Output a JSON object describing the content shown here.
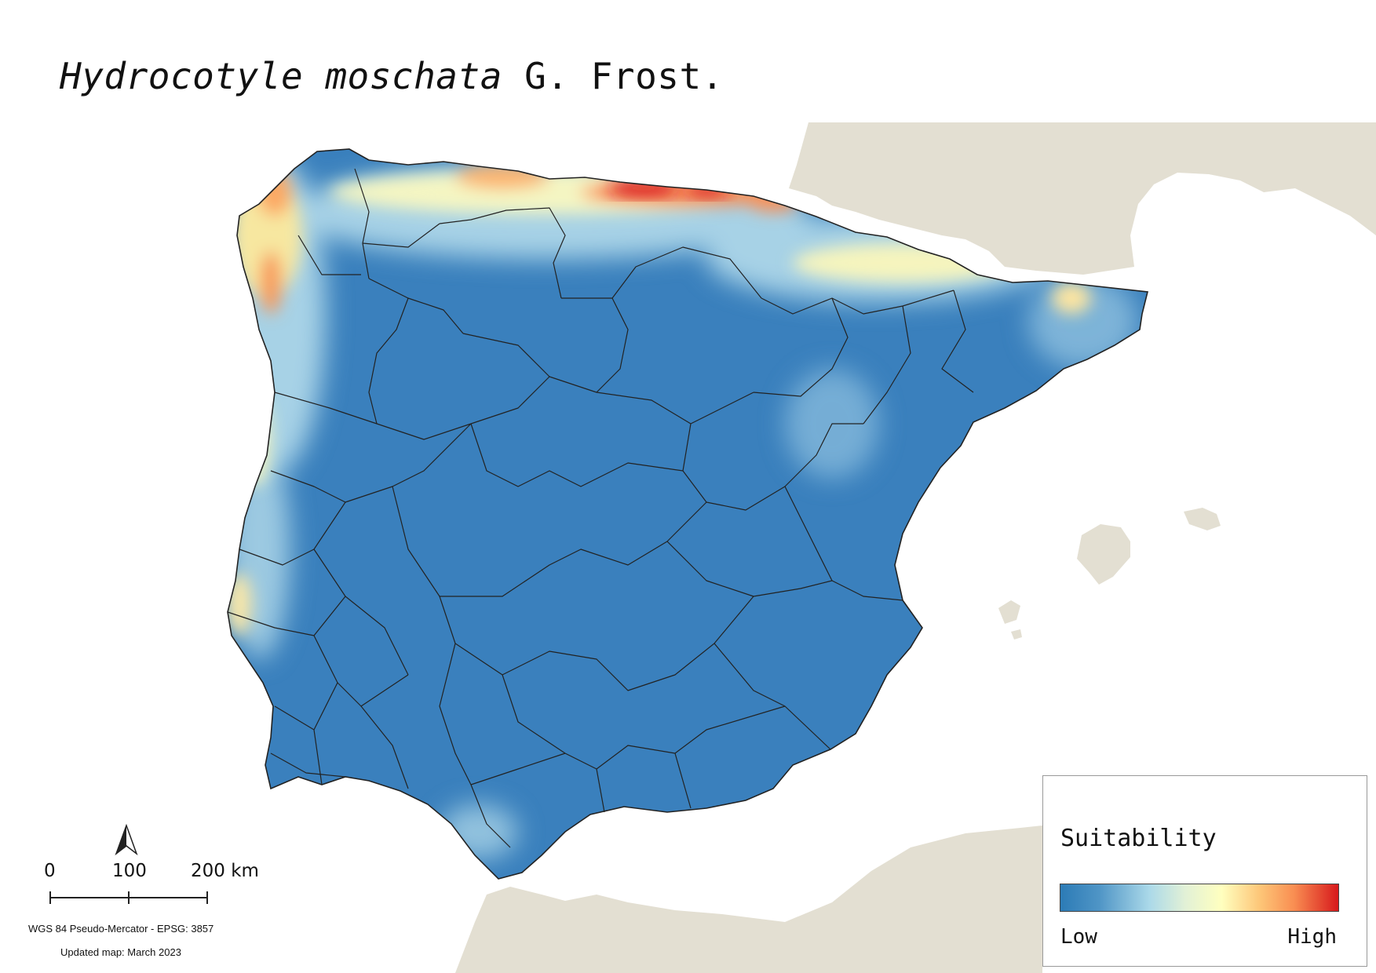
{
  "title": {
    "species": "Hydrocotyle moschata",
    "author": "G. Frost."
  },
  "scale_bar": {
    "labels": [
      "0",
      "100",
      "200 km"
    ]
  },
  "north_arrow": {
    "icon": "north-arrow-icon"
  },
  "credits": {
    "crs": "WGS 84 Pseudo-Mercator  - EPSG: 3857",
    "updated": "Updated map: March 2023"
  },
  "legend": {
    "title": "Suitability",
    "low": "Low",
    "high": "High",
    "ramp_colors": [
      "#2c7bb6",
      "#abd9e9",
      "#ffffbf",
      "#fdae61",
      "#d7191c"
    ]
  },
  "colors": {
    "land_background": "#e3dfd2",
    "sea": "#ffffff",
    "boundary": "#222222",
    "low_suitability": "#3a80bd",
    "high_suitability": "#d7191c"
  }
}
